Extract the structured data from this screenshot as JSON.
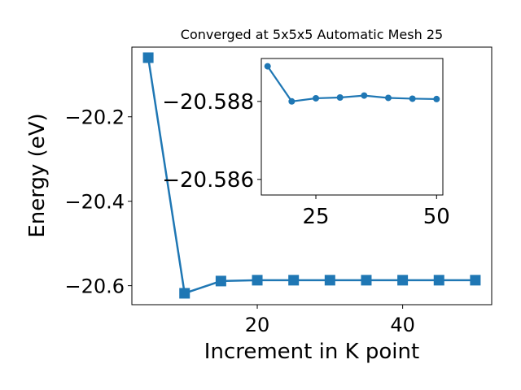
{
  "chart_data": [
    {
      "type": "line",
      "title": "Converged at 5x5x5 Automatic Mesh 25",
      "xlabel": "Increment in K point",
      "ylabel": "Energy (eV)",
      "marker": "square",
      "color": "#1f77b4",
      "grid": false,
      "xlim": [
        2.75,
        52.25
      ],
      "ylim": [
        -20.645,
        -20.035
      ],
      "xticks": [
        20,
        40
      ],
      "yticks": [
        -20.2,
        -20.4,
        -20.6
      ],
      "xtick_labels": [
        "20",
        "40"
      ],
      "ytick_labels": [
        "−20.2",
        "−20.4",
        "−20.6"
      ],
      "x": [
        5,
        10,
        15,
        20,
        25,
        30,
        35,
        40,
        45,
        50
      ],
      "y": [
        -20.06,
        -20.618,
        -20.589,
        -20.587,
        -20.587,
        -20.587,
        -20.587,
        -20.587,
        -20.587,
        -20.587
      ]
    },
    {
      "type": "line",
      "inset": true,
      "marker": "circle",
      "color": "#1f77b4",
      "grid": false,
      "xlim": [
        13.7,
        51.3
      ],
      "ylim": [
        -20.5856,
        -20.5891
      ],
      "xticks": [
        25,
        50
      ],
      "yticks": [
        -20.588,
        -20.586
      ],
      "xtick_labels": [
        "25",
        "50"
      ],
      "ytick_labels": [
        "−20.588",
        "−20.586"
      ],
      "x": [
        15,
        20,
        25,
        30,
        35,
        40,
        45,
        50
      ],
      "y": [
        -20.5889,
        -20.588,
        -20.58808,
        -20.5881,
        -20.58815,
        -20.58809,
        -20.58807,
        -20.58806
      ]
    }
  ]
}
